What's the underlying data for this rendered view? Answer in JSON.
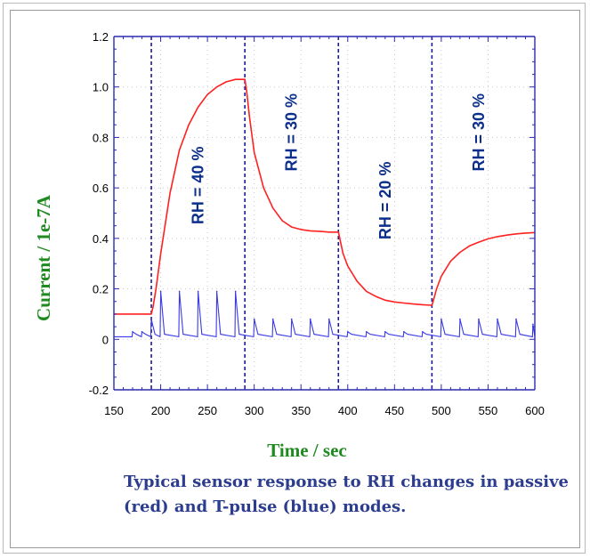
{
  "caption": "Typical sensor response to RH changes in passive (red) and T-pulse (blue) modes.",
  "chart_data": {
    "type": "line",
    "title": "",
    "xlabel": "Time / sec",
    "ylabel": "Current / 1e-7A",
    "xlim": [
      150,
      600
    ],
    "ylim": [
      -0.2,
      1.2
    ],
    "x_ticks": [
      "150",
      "200",
      "250",
      "300",
      "350",
      "400",
      "450",
      "500",
      "550",
      "600"
    ],
    "y_ticks": [
      "-0.2",
      "0",
      "0.2",
      "0.4",
      "0.6",
      "0.8",
      "1.0",
      "1.2"
    ],
    "grid": true,
    "colors": {
      "passive": "#ff2020",
      "pulse": "#3a3ae8",
      "vlines": "#1a1a9a",
      "annotation": "#0b2f8a",
      "axis_label": "#1f8a1f"
    },
    "series": [
      {
        "name": "",
        "color": "#ff2020",
        "x": [
          150,
          170,
          190,
          192,
          195,
          200,
          210,
          220,
          230,
          240,
          250,
          260,
          270,
          280,
          290,
          292,
          295,
          300,
          310,
          320,
          330,
          340,
          350,
          360,
          370,
          380,
          390,
          392,
          395,
          400,
          410,
          420,
          430,
          440,
          450,
          460,
          470,
          480,
          490,
          492,
          495,
          500,
          510,
          520,
          530,
          540,
          550,
          560,
          570,
          580,
          590,
          600
        ],
        "y": [
          0.1,
          0.1,
          0.1,
          0.13,
          0.2,
          0.34,
          0.58,
          0.75,
          0.85,
          0.92,
          0.97,
          1.0,
          1.02,
          1.03,
          1.03,
          0.98,
          0.88,
          0.74,
          0.6,
          0.52,
          0.47,
          0.445,
          0.435,
          0.43,
          0.428,
          0.425,
          0.425,
          0.39,
          0.34,
          0.29,
          0.23,
          0.19,
          0.17,
          0.155,
          0.148,
          0.144,
          0.14,
          0.137,
          0.135,
          0.16,
          0.2,
          0.25,
          0.31,
          0.345,
          0.37,
          0.385,
          0.398,
          0.407,
          0.413,
          0.418,
          0.421,
          0.423
        ]
      },
      {
        "name": "",
        "color": "#3a3ae8",
        "baseline": 0.01,
        "pulse_width": 4,
        "pulse_x": [
          170,
          180,
          190,
          200,
          220,
          240,
          260,
          280,
          300,
          320,
          340,
          360,
          380,
          400,
          420,
          440,
          460,
          480,
          500,
          520,
          540,
          560,
          580,
          598
        ],
        "pulse_y": [
          0.03,
          0.03,
          0.08,
          0.19,
          0.19,
          0.19,
          0.19,
          0.19,
          0.08,
          0.08,
          0.08,
          0.08,
          0.08,
          0.03,
          0.03,
          0.03,
          0.03,
          0.03,
          0.08,
          0.08,
          0.08,
          0.08,
          0.08,
          0.06
        ]
      }
    ],
    "vlines_x": [
      190,
      290,
      390,
      490
    ],
    "annotations": [
      {
        "text": "RH = 40 %",
        "x": 240,
        "y": 0.61
      },
      {
        "text": "RH = 30 %",
        "x": 340,
        "y": 0.82
      },
      {
        "text": "RH = 20 %",
        "x": 440,
        "y": 0.55
      },
      {
        "text": "RH = 30 %",
        "x": 540,
        "y": 0.82
      }
    ]
  }
}
